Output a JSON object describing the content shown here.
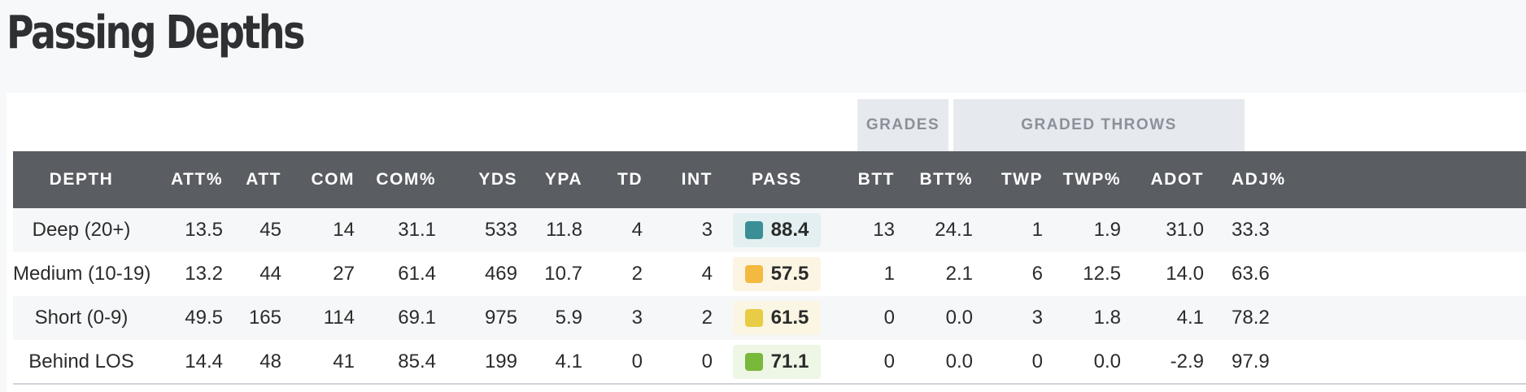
{
  "title": "Passing Depths",
  "groups": {
    "grades": "GRADES",
    "graded_throws": "GRADED THROWS"
  },
  "columns": [
    "DEPTH",
    "ATT%",
    "ATT",
    "COM",
    "COM%",
    "YDS",
    "YPA",
    "TD",
    "INT",
    "PASS",
    "BTT",
    "BTT%",
    "TWP",
    "TWP%",
    "ADOT",
    "ADJ%"
  ],
  "rows": [
    {
      "depth": "Deep (20+)",
      "att_pct": "13.5",
      "att": "45",
      "com": "14",
      "com_pct": "31.1",
      "yds": "533",
      "ypa": "11.8",
      "td": "4",
      "int": "3",
      "pass": "88.4",
      "pass_color": "#3a8f96",
      "pass_bg": "#e3eff0",
      "btt": "13",
      "btt_pct": "24.1",
      "twp": "1",
      "twp_pct": "1.9",
      "adot": "31.0",
      "adj_pct": "33.3"
    },
    {
      "depth": "Medium (10-19)",
      "att_pct": "13.2",
      "att": "44",
      "com": "27",
      "com_pct": "61.4",
      "yds": "469",
      "ypa": "10.7",
      "td": "2",
      "int": "4",
      "pass": "57.5",
      "pass_color": "#f4b940",
      "pass_bg": "#fdf5e4",
      "btt": "1",
      "btt_pct": "2.1",
      "twp": "6",
      "twp_pct": "12.5",
      "adot": "14.0",
      "adj_pct": "63.6"
    },
    {
      "depth": "Short (0-9)",
      "att_pct": "49.5",
      "att": "165",
      "com": "114",
      "com_pct": "69.1",
      "yds": "975",
      "ypa": "5.9",
      "td": "3",
      "int": "2",
      "pass": "61.5",
      "pass_color": "#e9cc45",
      "pass_bg": "#fbf6e3",
      "btt": "0",
      "btt_pct": "0.0",
      "twp": "3",
      "twp_pct": "1.8",
      "adot": "4.1",
      "adj_pct": "78.2"
    },
    {
      "depth": "Behind LOS",
      "att_pct": "14.4",
      "att": "48",
      "com": "41",
      "com_pct": "85.4",
      "yds": "199",
      "ypa": "4.1",
      "td": "0",
      "int": "0",
      "pass": "71.1",
      "pass_color": "#78b83a",
      "pass_bg": "#eef6e6",
      "btt": "0",
      "btt_pct": "0.0",
      "twp": "0",
      "twp_pct": "0.0",
      "adot": "-2.9",
      "adj_pct": "97.9"
    }
  ]
}
